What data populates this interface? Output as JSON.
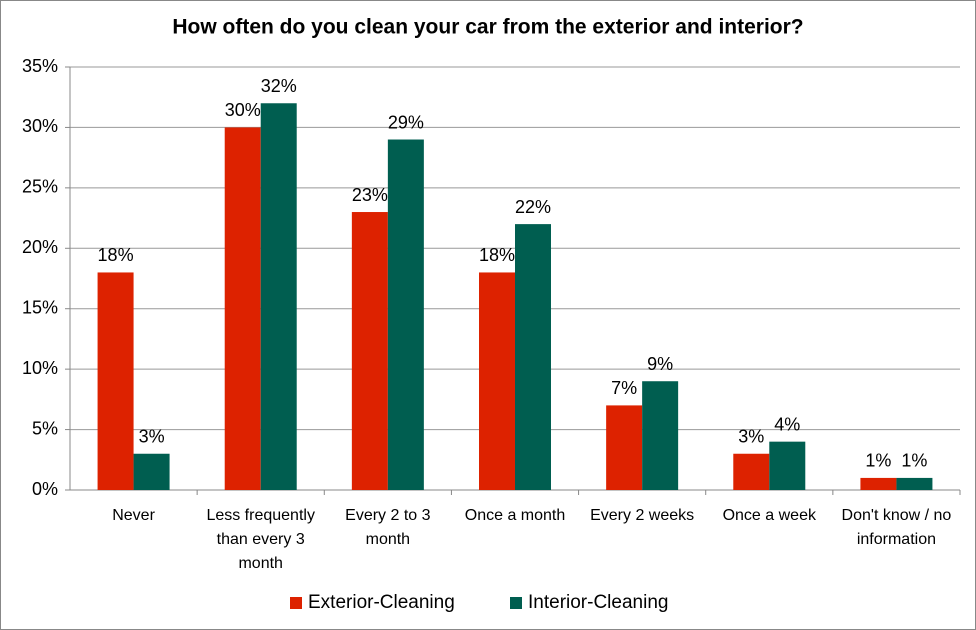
{
  "chart_data": {
    "type": "bar",
    "title": "How often do you clean your car from the exterior and interior?",
    "categories": [
      "Never",
      "Less frequently than every 3 month",
      "Every 2 to 3 month",
      "Once a month",
      "Every 2 weeks",
      "Once a week",
      "Don't know / no information"
    ],
    "series": [
      {
        "name": "Exterior-Cleaning",
        "color": "#dd2200",
        "values": [
          18,
          30,
          23,
          18,
          7,
          3,
          1
        ],
        "value_labels": [
          "18%",
          "30%",
          "23%",
          "18%",
          "7%",
          "3%",
          "1%"
        ]
      },
      {
        "name": "Interior-Cleaning",
        "color": "#005e50",
        "values": [
          3,
          32,
          29,
          22,
          9,
          4,
          1
        ],
        "value_labels": [
          "3%",
          "32%",
          "29%",
          "22%",
          "9%",
          "4%",
          "1%"
        ]
      }
    ],
    "ylim": [
      0,
      35
    ],
    "yticks": [
      {
        "value": 0,
        "label": "0%"
      },
      {
        "value": 5,
        "label": "5%"
      },
      {
        "value": 10,
        "label": "10%"
      },
      {
        "value": 15,
        "label": "15%"
      },
      {
        "value": 20,
        "label": "20%"
      },
      {
        "value": 25,
        "label": "25%"
      },
      {
        "value": 30,
        "label": "30%"
      },
      {
        "value": 35,
        "label": "35%"
      }
    ],
    "grid": true,
    "legend": "bottom"
  }
}
